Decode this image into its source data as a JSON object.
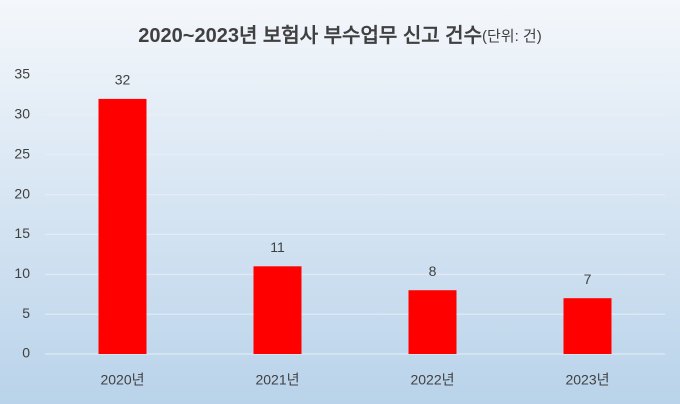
{
  "chart_data": {
    "type": "bar",
    "title": "2020~2023년 보험사 부수업무 신고 건수",
    "subtitle": "(단위: 건)",
    "categories": [
      "2020년",
      "2021년",
      "2022년",
      "2023년"
    ],
    "values": [
      32,
      11,
      8,
      7
    ],
    "color": "#ff0000",
    "ylim": [
      0,
      35
    ],
    "yticks": [
      0,
      5,
      10,
      15,
      20,
      25,
      30,
      35
    ],
    "grid": true
  }
}
